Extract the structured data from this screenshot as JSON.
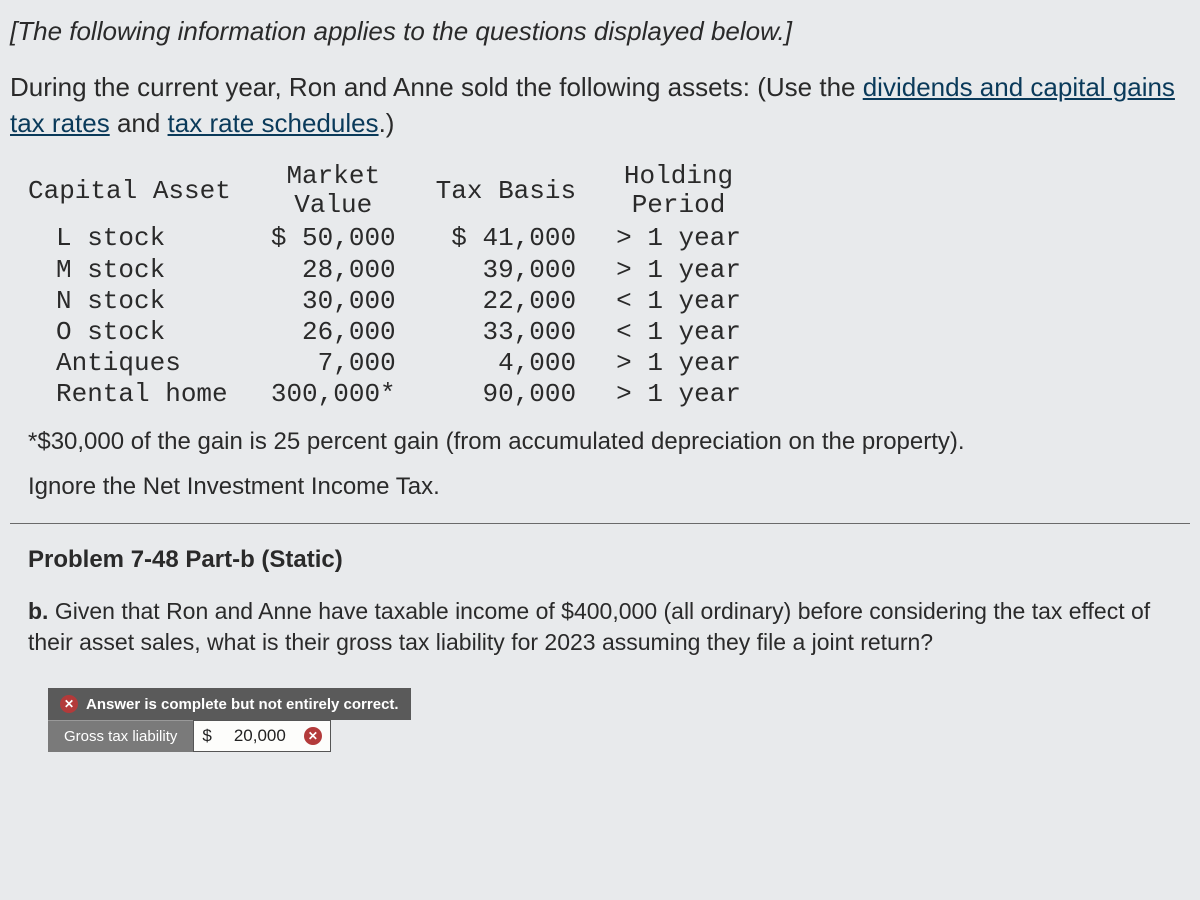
{
  "intro": "[The following information applies to the questions displayed below.]",
  "body_pre": "During the current year, Ron and Anne sold the following assets: (Use the ",
  "link1": "dividends and capital gains tax rates",
  "body_mid": " and ",
  "link2": "tax rate schedules",
  "body_post": ".)",
  "table": {
    "headers": {
      "asset": "Capital Asset",
      "market1": "Market",
      "market2": "Value",
      "basis": "Tax Basis",
      "holding1": "Holding",
      "holding2": "Period"
    },
    "rows": [
      {
        "asset": "L stock",
        "mv": "$ 50,000",
        "basis": "$ 41,000",
        "hold": "> 1 year"
      },
      {
        "asset": "M stock",
        "mv": "28,000",
        "basis": "39,000",
        "hold": "> 1 year"
      },
      {
        "asset": "N stock",
        "mv": "30,000",
        "basis": "22,000",
        "hold": "< 1 year"
      },
      {
        "asset": "O stock",
        "mv": "26,000",
        "basis": "33,000",
        "hold": "< 1 year"
      },
      {
        "asset": "Antiques",
        "mv": "7,000",
        "basis": "4,000",
        "hold": "> 1 year"
      },
      {
        "asset": "Rental home",
        "mv": "300,000*",
        "basis": "90,000",
        "hold": "> 1 year"
      }
    ]
  },
  "footnote": "*$30,000 of the gain is 25 percent gain (from accumulated depreciation on the property).",
  "ignore": "Ignore the Net Investment Income Tax.",
  "problem_title": "Problem 7-48 Part-b (Static)",
  "problem_text_b": "b.",
  "problem_text": " Given that Ron and Anne have taxable income of $400,000 (all ordinary) before considering the tax effect of their asset sales, what is their gross tax liability for 2023 assuming they file a joint return?",
  "answer": {
    "header": "Answer is complete but not entirely correct.",
    "label": "Gross tax liability",
    "currency": "$",
    "value": "20,000"
  },
  "colors": {
    "page_bg": "#e8eaec",
    "text": "#2a2a2a",
    "link": "#0a3a5a",
    "header_bg": "#5a5a5a",
    "label_bg": "#7a7a7a",
    "error_badge": "#b33a3a",
    "value_bg": "#fdfdfb",
    "border": "#555555",
    "divider": "#6a6a6a"
  }
}
